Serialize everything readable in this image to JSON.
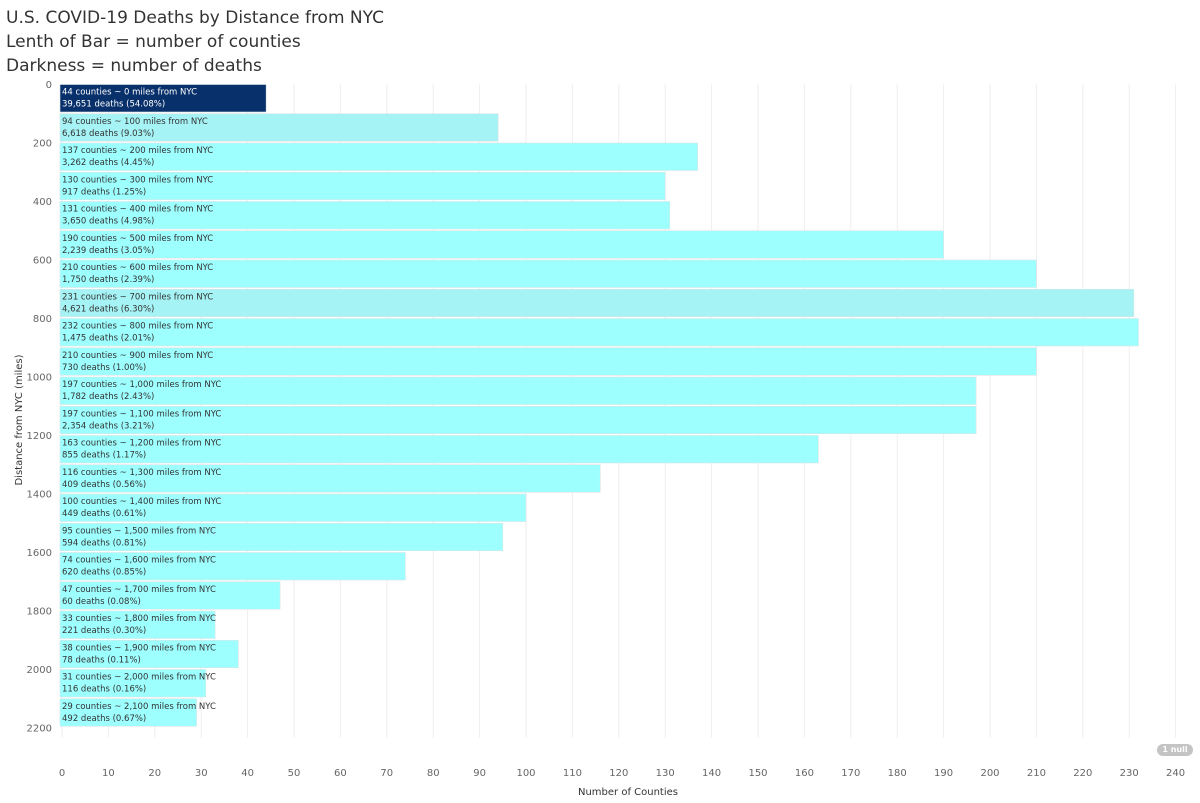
{
  "title": {
    "line1": "U.S. COVID-19 Deaths by Distance from NYC",
    "line2": "Lenth of Bar = number of counties",
    "line3": "Darkness = number of deaths"
  },
  "null_badge": "1 null",
  "chart_data": {
    "type": "bar",
    "orientation": "horizontal",
    "xlabel": "Number of Counties",
    "ylabel": "Distance from NYC (miles)",
    "xlim": [
      0,
      240
    ],
    "ylim": [
      0,
      2200
    ],
    "x_ticks": [
      0,
      10,
      20,
      30,
      40,
      50,
      60,
      70,
      80,
      90,
      100,
      110,
      120,
      130,
      140,
      150,
      160,
      170,
      180,
      190,
      200,
      210,
      220,
      230,
      240
    ],
    "y_ticks": [
      0,
      200,
      400,
      600,
      800,
      1000,
      1200,
      1400,
      1600,
      1800,
      2000,
      2200
    ],
    "colors": {
      "dark": "#08306b",
      "light": "#9effff",
      "mid": "#a6f3f5",
      "label_dark": "#ffffff",
      "label_light": "#333333",
      "grid": "#eeeeee",
      "axis_text": "#666666"
    },
    "bars": [
      {
        "distance": 0,
        "counties": 44,
        "deaths": 39651,
        "label1": "44 counties ~ 0 miles from NYC",
        "label2": "39,651 deaths (54.08%)"
      },
      {
        "distance": 100,
        "counties": 94,
        "deaths": 6618,
        "label1": "94 counties ~ 100 miles from NYC",
        "label2": "6,618 deaths (9.03%)"
      },
      {
        "distance": 200,
        "counties": 137,
        "deaths": 3262,
        "label1": "137 counties ~ 200 miles from NYC",
        "label2": "3,262 deaths (4.45%)"
      },
      {
        "distance": 300,
        "counties": 130,
        "deaths": 917,
        "label1": "130 counties ~ 300 miles from NYC",
        "label2": "917 deaths (1.25%)"
      },
      {
        "distance": 400,
        "counties": 131,
        "deaths": 3650,
        "label1": "131 counties ~ 400 miles from NYC",
        "label2": "3,650 deaths (4.98%)"
      },
      {
        "distance": 500,
        "counties": 190,
        "deaths": 2239,
        "label1": "190 counties ~ 500 miles from NYC",
        "label2": "2,239 deaths (3.05%)"
      },
      {
        "distance": 600,
        "counties": 210,
        "deaths": 1750,
        "label1": "210 counties ~ 600 miles from NYC",
        "label2": "1,750 deaths (2.39%)"
      },
      {
        "distance": 700,
        "counties": 231,
        "deaths": 4621,
        "label1": "231 counties ~ 700 miles from NYC",
        "label2": "4,621 deaths (6.30%)"
      },
      {
        "distance": 800,
        "counties": 232,
        "deaths": 1475,
        "label1": "232 counties ~ 800 miles from NYC",
        "label2": "1,475 deaths (2.01%)"
      },
      {
        "distance": 900,
        "counties": 210,
        "deaths": 730,
        "label1": "210 counties ~ 900 miles from NYC",
        "label2": "730 deaths (1.00%)"
      },
      {
        "distance": 1000,
        "counties": 197,
        "deaths": 1782,
        "label1": "197 counties ~ 1,000 miles from NYC",
        "label2": "1,782 deaths (2.43%)"
      },
      {
        "distance": 1100,
        "counties": 197,
        "deaths": 2354,
        "label1": "197 counties ~ 1,100 miles from NYC",
        "label2": "2,354 deaths (3.21%)"
      },
      {
        "distance": 1200,
        "counties": 163,
        "deaths": 855,
        "label1": "163 counties ~ 1,200 miles from NYC",
        "label2": "855 deaths (1.17%)"
      },
      {
        "distance": 1300,
        "counties": 116,
        "deaths": 409,
        "label1": "116 counties ~ 1,300 miles from NYC",
        "label2": "409 deaths (0.56%)"
      },
      {
        "distance": 1400,
        "counties": 100,
        "deaths": 449,
        "label1": "100 counties ~ 1,400 miles from NYC",
        "label2": "449 deaths (0.61%)"
      },
      {
        "distance": 1500,
        "counties": 95,
        "deaths": 594,
        "label1": "95 counties ~ 1,500 miles from NYC",
        "label2": "594 deaths (0.81%)"
      },
      {
        "distance": 1600,
        "counties": 74,
        "deaths": 620,
        "label1": "74 counties ~ 1,600 miles from NYC",
        "label2": "620 deaths (0.85%)"
      },
      {
        "distance": 1700,
        "counties": 47,
        "deaths": 60,
        "label1": "47 counties ~ 1,700 miles from NYC",
        "label2": "60 deaths (0.08%)"
      },
      {
        "distance": 1800,
        "counties": 33,
        "deaths": 221,
        "label1": "33 counties ~ 1,800 miles from NYC",
        "label2": "221 deaths (0.30%)"
      },
      {
        "distance": 1900,
        "counties": 38,
        "deaths": 78,
        "label1": "38 counties ~ 1,900 miles from NYC",
        "label2": "78 deaths (0.11%)"
      },
      {
        "distance": 2000,
        "counties": 31,
        "deaths": 116,
        "label1": "31 counties ~ 2,000 miles from NYC",
        "label2": "116 deaths (0.16%)"
      },
      {
        "distance": 2100,
        "counties": 29,
        "deaths": 492,
        "label1": "29 counties ~ 2,100 miles from NYC",
        "label2": "492 deaths (0.67%)"
      }
    ]
  }
}
